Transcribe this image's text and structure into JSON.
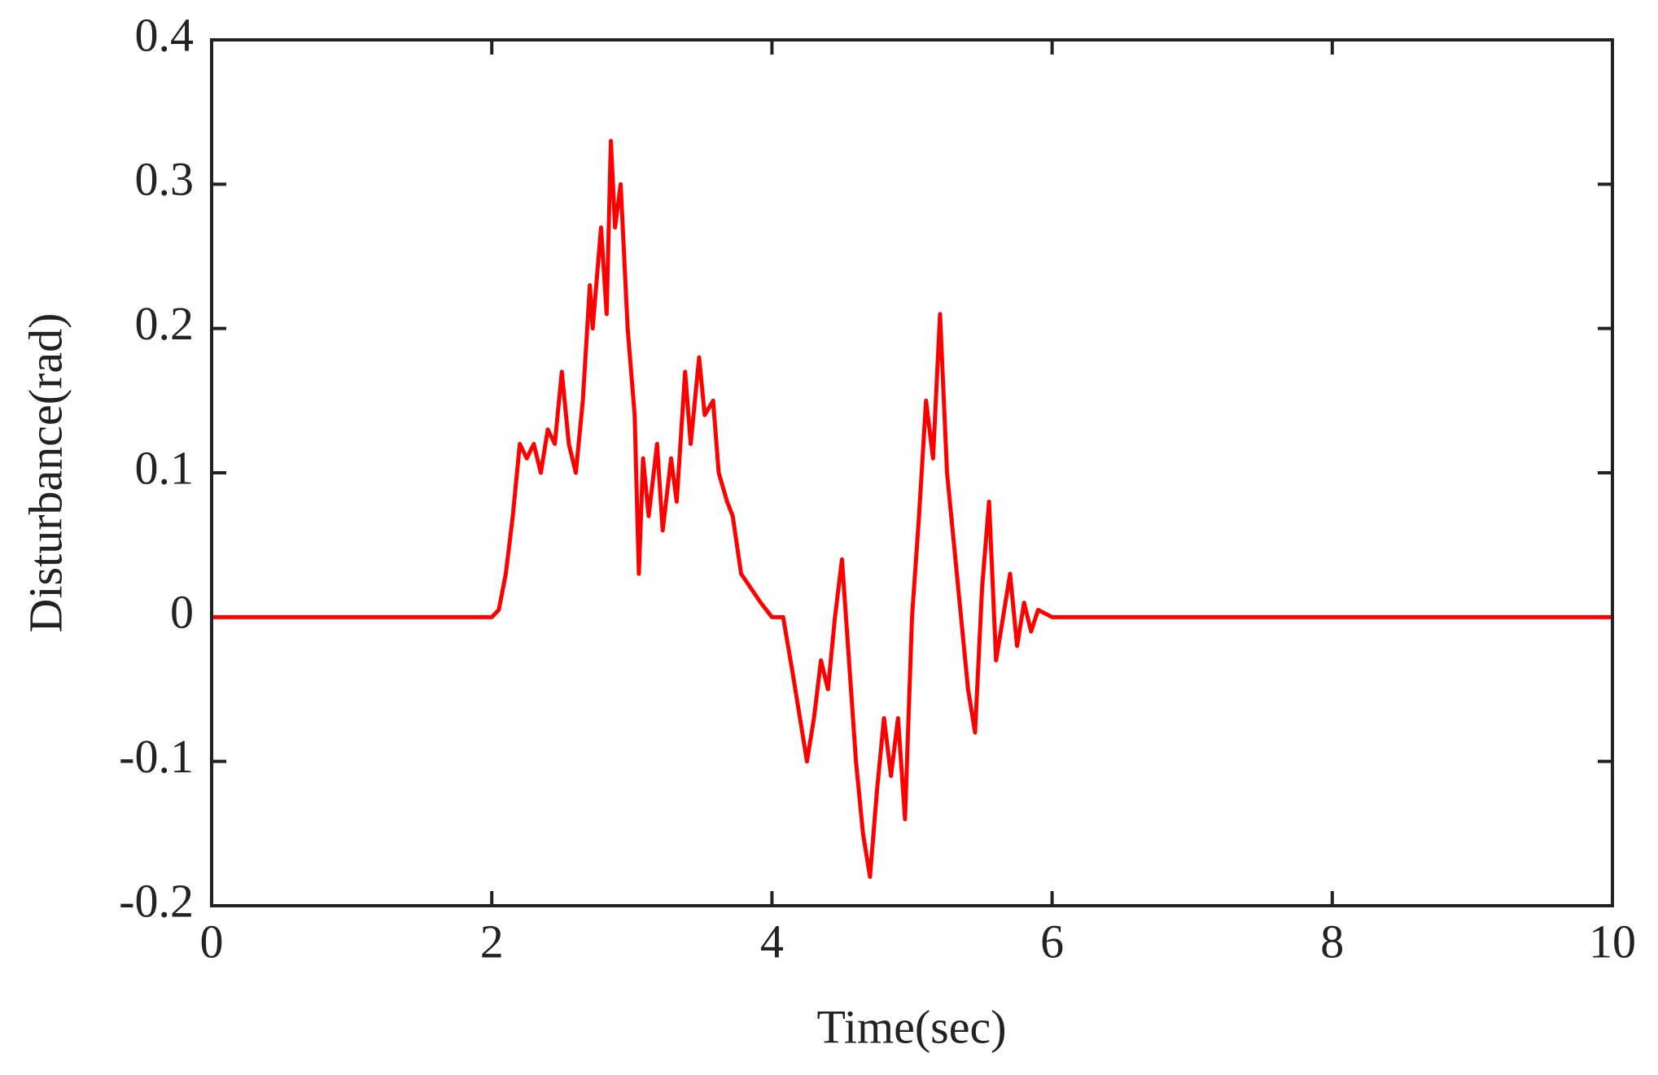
{
  "chart_data": {
    "type": "line",
    "xlabel": "Time(sec)",
    "ylabel": "Disturbance(rad)",
    "xlim": [
      0,
      10
    ],
    "ylim": [
      -0.2,
      0.4
    ],
    "xticks": [
      0,
      2,
      4,
      6,
      8,
      10
    ],
    "yticks": [
      -0.2,
      -0.1,
      0,
      0.1,
      0.2,
      0.3,
      0.4
    ],
    "grid": false,
    "series": [
      {
        "color": "#ff0000",
        "x": [
          0,
          2,
          2.05,
          2.1,
          2.15,
          2.2,
          2.25,
          2.3,
          2.35,
          2.4,
          2.45,
          2.5,
          2.55,
          2.6,
          2.65,
          2.7,
          2.72,
          2.78,
          2.82,
          2.85,
          2.88,
          2.92,
          2.97,
          3.02,
          3.05,
          3.08,
          3.12,
          3.18,
          3.22,
          3.28,
          3.32,
          3.38,
          3.42,
          3.48,
          3.52,
          3.58,
          3.62,
          3.68,
          3.72,
          3.78,
          3.85,
          3.92,
          4.0,
          4.08,
          4.15,
          4.2,
          4.25,
          4.3,
          4.35,
          4.4,
          4.45,
          4.5,
          4.55,
          4.6,
          4.65,
          4.7,
          4.75,
          4.8,
          4.85,
          4.9,
          4.95,
          5.0,
          5.05,
          5.1,
          5.15,
          5.2,
          5.25,
          5.3,
          5.35,
          5.4,
          5.45,
          5.5,
          5.55,
          5.6,
          5.65,
          5.7,
          5.75,
          5.8,
          5.85,
          5.9,
          6.0,
          10
        ],
        "values": [
          0,
          0,
          0.005,
          0.03,
          0.07,
          0.12,
          0.11,
          0.12,
          0.1,
          0.13,
          0.12,
          0.17,
          0.12,
          0.1,
          0.15,
          0.23,
          0.2,
          0.27,
          0.21,
          0.33,
          0.27,
          0.3,
          0.2,
          0.14,
          0.03,
          0.11,
          0.07,
          0.12,
          0.06,
          0.11,
          0.08,
          0.17,
          0.12,
          0.18,
          0.14,
          0.15,
          0.1,
          0.08,
          0.07,
          0.03,
          0.02,
          0.01,
          0.0,
          0.0,
          -0.04,
          -0.07,
          -0.1,
          -0.07,
          -0.03,
          -0.05,
          0.0,
          0.04,
          -0.03,
          -0.1,
          -0.15,
          -0.18,
          -0.12,
          -0.07,
          -0.11,
          -0.07,
          -0.14,
          0.0,
          0.07,
          0.15,
          0.11,
          0.21,
          0.1,
          0.05,
          0.0,
          -0.05,
          -0.08,
          0.02,
          0.08,
          -0.03,
          0.0,
          0.03,
          -0.02,
          0.01,
          -0.01,
          0.005,
          0,
          0
        ]
      }
    ]
  }
}
